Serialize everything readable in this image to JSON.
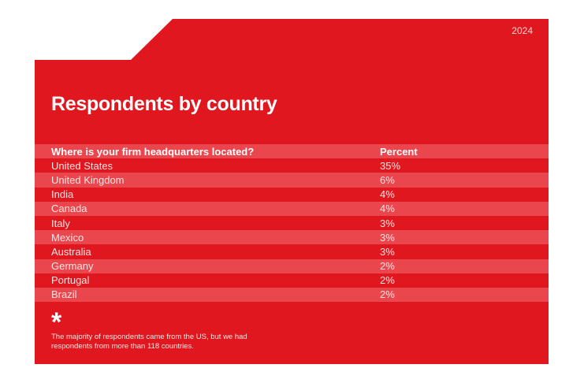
{
  "year": "2024",
  "title": "Respondents by country",
  "table": {
    "headers": [
      "Where is your firm headquarters located?",
      "Percent"
    ],
    "rows": [
      [
        "United States",
        "35%"
      ],
      [
        "United Kingdom",
        "6%"
      ],
      [
        "India",
        "4%"
      ],
      [
        "Canada",
        "4%"
      ],
      [
        "Italy",
        "3%"
      ],
      [
        "Mexico",
        "3%"
      ],
      [
        "Australia",
        "3%"
      ],
      [
        "Germany",
        "2%"
      ],
      [
        "Portugal",
        "2%"
      ],
      [
        "Brazil",
        "2%"
      ]
    ]
  },
  "footnote": {
    "symbol": "*",
    "text": "The majority of respondents came from the US, but we had respondents from more than 118 countries."
  }
}
